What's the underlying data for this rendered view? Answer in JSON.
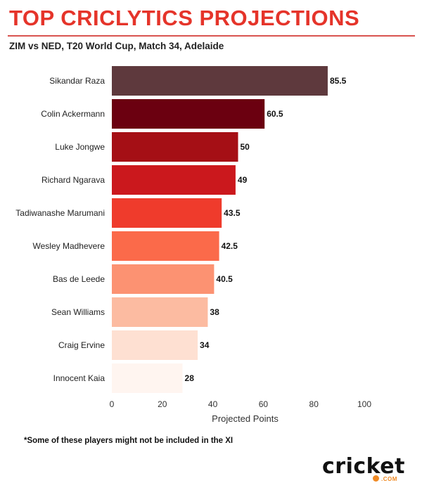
{
  "header": {
    "title": "TOP CRICLYTICS PROJECTIONS",
    "subtitle": "ZIM vs NED, T20 World Cup, Match 34, Adelaide"
  },
  "footnote": "*Some of these players might not be included in the XI",
  "logo": {
    "word": "cricket",
    "suffix": ".COM",
    "accent_color": "#f08a24"
  },
  "chart_data": {
    "type": "bar",
    "orientation": "horizontal",
    "title": "TOP CRICLYTICS PROJECTIONS",
    "subtitle": "ZIM vs NED, T20 World Cup, Match 34, Adelaide",
    "xlabel": "Projected Points",
    "ylabel": "",
    "xlim": [
      0,
      100
    ],
    "xticks": [
      0,
      20,
      40,
      60,
      80,
      100
    ],
    "grid": false,
    "categories": [
      "Sikandar Raza",
      "Colin Ackermann",
      "Luke Jongwe",
      "Richard Ngarava",
      "Tadiwanashe Marumani",
      "Wesley Madhevere",
      "Bas de Leede",
      "Sean Williams",
      "Craig Ervine",
      "Innocent Kaia"
    ],
    "values": [
      85.5,
      60.5,
      50,
      49,
      43.5,
      42.5,
      40.5,
      38,
      34,
      28
    ],
    "value_labels": [
      "85.5",
      "60.5",
      "50",
      "49",
      "43.5",
      "42.5",
      "40.5",
      "38",
      "34",
      "28"
    ],
    "colors": [
      "#5e393d",
      "#6b0010",
      "#a50f15",
      "#cb181d",
      "#ef3b2c",
      "#fb6a4a",
      "#fc9272",
      "#fcbba1",
      "#fee0d2",
      "#fff5f0"
    ]
  }
}
